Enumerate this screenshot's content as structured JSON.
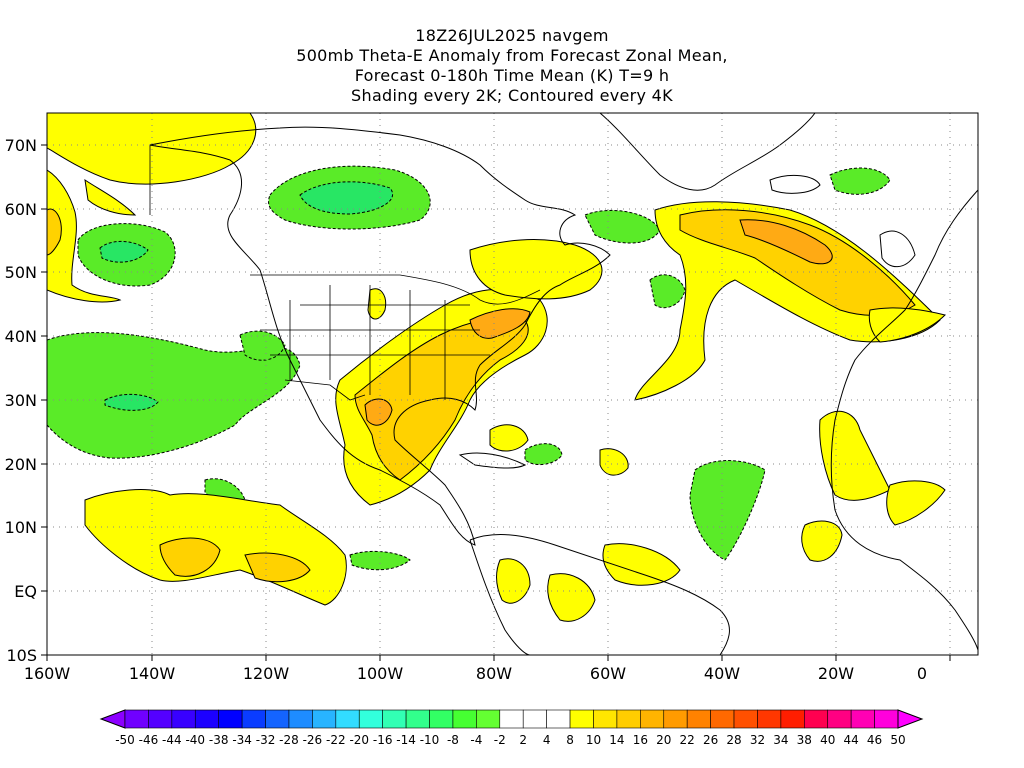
{
  "title": {
    "line1": "18Z26JUL2025 navgem",
    "line2": "500mb Theta-E Anomaly from Forecast Zonal Mean,",
    "line3": "Forecast 0-180h Time Mean (K) T=9 h",
    "line4": "Shading every 2K; Contoured every 4K"
  },
  "axes": {
    "lat_labels": [
      "70N",
      "60N",
      "50N",
      "40N",
      "30N",
      "20N",
      "10N",
      "EQ",
      "10S"
    ],
    "lon_labels": [
      "160W",
      "140W",
      "120W",
      "100W",
      "80W",
      "60W",
      "40W",
      "20W",
      "0"
    ]
  },
  "colorbar": {
    "labels": [
      "-50",
      "-46",
      "-44",
      "-40",
      "-38",
      "-34",
      "-32",
      "-28",
      "-26",
      "-22",
      "-20",
      "-16",
      "-14",
      "-10",
      "-8",
      "-4",
      "-2",
      "2",
      "4",
      "8",
      "10",
      "14",
      "16",
      "20",
      "22",
      "26",
      "28",
      "32",
      "34",
      "38",
      "40",
      "44",
      "46",
      "50"
    ],
    "colors": [
      "#8c00ff",
      "#7000ff",
      "#5400ff",
      "#3800ff",
      "#1c00ff",
      "#0000ff",
      "#0a3cff",
      "#1464ff",
      "#1e8cff",
      "#28b4ff",
      "#32dcff",
      "#32ffdc",
      "#32ffb4",
      "#32ff8c",
      "#32ff64",
      "#46ff32",
      "#64ff32",
      "#ffffff",
      "#ffffff",
      "#ffffff",
      "#ffff00",
      "#ffe600",
      "#ffcd00",
      "#ffb400",
      "#ff9b00",
      "#ff8200",
      "#ff6900",
      "#ff5000",
      "#ff3700",
      "#ff1e00",
      "#ff0050",
      "#ff0082",
      "#ff00b4",
      "#ff00dc",
      "#ff00ff"
    ]
  },
  "colors": {
    "positive_light": "#ffff00",
    "positive_mid": "#ffd200",
    "positive_high": "#ffaa14",
    "negative_light": "#5aeb28",
    "negative_mid": "#28e664",
    "negative_high": "#1ecf9b"
  }
}
